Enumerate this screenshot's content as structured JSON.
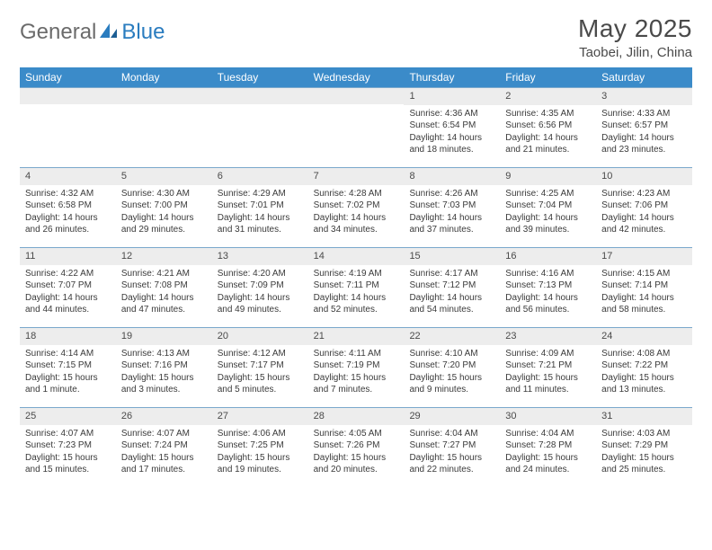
{
  "logo": {
    "text1": "General",
    "text2": "Blue"
  },
  "title": "May 2025",
  "location": "Taobei, Jilin, China",
  "weekdays": [
    "Sunday",
    "Monday",
    "Tuesday",
    "Wednesday",
    "Thursday",
    "Friday",
    "Saturday"
  ],
  "colors": {
    "header_bg": "#3b8bc9",
    "header_text": "#ffffff",
    "daynum_bg": "#ededed",
    "border": "#7aa8cc",
    "logo_blue": "#2a7cbf",
    "logo_gray": "#6b6b6b",
    "text": "#3a3a3a"
  },
  "weeks": [
    [
      {
        "n": "",
        "sunrise": "",
        "sunset": "",
        "daylight": ""
      },
      {
        "n": "",
        "sunrise": "",
        "sunset": "",
        "daylight": ""
      },
      {
        "n": "",
        "sunrise": "",
        "sunset": "",
        "daylight": ""
      },
      {
        "n": "",
        "sunrise": "",
        "sunset": "",
        "daylight": ""
      },
      {
        "n": "1",
        "sunrise": "Sunrise: 4:36 AM",
        "sunset": "Sunset: 6:54 PM",
        "daylight": "Daylight: 14 hours and 18 minutes."
      },
      {
        "n": "2",
        "sunrise": "Sunrise: 4:35 AM",
        "sunset": "Sunset: 6:56 PM",
        "daylight": "Daylight: 14 hours and 21 minutes."
      },
      {
        "n": "3",
        "sunrise": "Sunrise: 4:33 AM",
        "sunset": "Sunset: 6:57 PM",
        "daylight": "Daylight: 14 hours and 23 minutes."
      }
    ],
    [
      {
        "n": "4",
        "sunrise": "Sunrise: 4:32 AM",
        "sunset": "Sunset: 6:58 PM",
        "daylight": "Daylight: 14 hours and 26 minutes."
      },
      {
        "n": "5",
        "sunrise": "Sunrise: 4:30 AM",
        "sunset": "Sunset: 7:00 PM",
        "daylight": "Daylight: 14 hours and 29 minutes."
      },
      {
        "n": "6",
        "sunrise": "Sunrise: 4:29 AM",
        "sunset": "Sunset: 7:01 PM",
        "daylight": "Daylight: 14 hours and 31 minutes."
      },
      {
        "n": "7",
        "sunrise": "Sunrise: 4:28 AM",
        "sunset": "Sunset: 7:02 PM",
        "daylight": "Daylight: 14 hours and 34 minutes."
      },
      {
        "n": "8",
        "sunrise": "Sunrise: 4:26 AM",
        "sunset": "Sunset: 7:03 PM",
        "daylight": "Daylight: 14 hours and 37 minutes."
      },
      {
        "n": "9",
        "sunrise": "Sunrise: 4:25 AM",
        "sunset": "Sunset: 7:04 PM",
        "daylight": "Daylight: 14 hours and 39 minutes."
      },
      {
        "n": "10",
        "sunrise": "Sunrise: 4:23 AM",
        "sunset": "Sunset: 7:06 PM",
        "daylight": "Daylight: 14 hours and 42 minutes."
      }
    ],
    [
      {
        "n": "11",
        "sunrise": "Sunrise: 4:22 AM",
        "sunset": "Sunset: 7:07 PM",
        "daylight": "Daylight: 14 hours and 44 minutes."
      },
      {
        "n": "12",
        "sunrise": "Sunrise: 4:21 AM",
        "sunset": "Sunset: 7:08 PM",
        "daylight": "Daylight: 14 hours and 47 minutes."
      },
      {
        "n": "13",
        "sunrise": "Sunrise: 4:20 AM",
        "sunset": "Sunset: 7:09 PM",
        "daylight": "Daylight: 14 hours and 49 minutes."
      },
      {
        "n": "14",
        "sunrise": "Sunrise: 4:19 AM",
        "sunset": "Sunset: 7:11 PM",
        "daylight": "Daylight: 14 hours and 52 minutes."
      },
      {
        "n": "15",
        "sunrise": "Sunrise: 4:17 AM",
        "sunset": "Sunset: 7:12 PM",
        "daylight": "Daylight: 14 hours and 54 minutes."
      },
      {
        "n": "16",
        "sunrise": "Sunrise: 4:16 AM",
        "sunset": "Sunset: 7:13 PM",
        "daylight": "Daylight: 14 hours and 56 minutes."
      },
      {
        "n": "17",
        "sunrise": "Sunrise: 4:15 AM",
        "sunset": "Sunset: 7:14 PM",
        "daylight": "Daylight: 14 hours and 58 minutes."
      }
    ],
    [
      {
        "n": "18",
        "sunrise": "Sunrise: 4:14 AM",
        "sunset": "Sunset: 7:15 PM",
        "daylight": "Daylight: 15 hours and 1 minute."
      },
      {
        "n": "19",
        "sunrise": "Sunrise: 4:13 AM",
        "sunset": "Sunset: 7:16 PM",
        "daylight": "Daylight: 15 hours and 3 minutes."
      },
      {
        "n": "20",
        "sunrise": "Sunrise: 4:12 AM",
        "sunset": "Sunset: 7:17 PM",
        "daylight": "Daylight: 15 hours and 5 minutes."
      },
      {
        "n": "21",
        "sunrise": "Sunrise: 4:11 AM",
        "sunset": "Sunset: 7:19 PM",
        "daylight": "Daylight: 15 hours and 7 minutes."
      },
      {
        "n": "22",
        "sunrise": "Sunrise: 4:10 AM",
        "sunset": "Sunset: 7:20 PM",
        "daylight": "Daylight: 15 hours and 9 minutes."
      },
      {
        "n": "23",
        "sunrise": "Sunrise: 4:09 AM",
        "sunset": "Sunset: 7:21 PM",
        "daylight": "Daylight: 15 hours and 11 minutes."
      },
      {
        "n": "24",
        "sunrise": "Sunrise: 4:08 AM",
        "sunset": "Sunset: 7:22 PM",
        "daylight": "Daylight: 15 hours and 13 minutes."
      }
    ],
    [
      {
        "n": "25",
        "sunrise": "Sunrise: 4:07 AM",
        "sunset": "Sunset: 7:23 PM",
        "daylight": "Daylight: 15 hours and 15 minutes."
      },
      {
        "n": "26",
        "sunrise": "Sunrise: 4:07 AM",
        "sunset": "Sunset: 7:24 PM",
        "daylight": "Daylight: 15 hours and 17 minutes."
      },
      {
        "n": "27",
        "sunrise": "Sunrise: 4:06 AM",
        "sunset": "Sunset: 7:25 PM",
        "daylight": "Daylight: 15 hours and 19 minutes."
      },
      {
        "n": "28",
        "sunrise": "Sunrise: 4:05 AM",
        "sunset": "Sunset: 7:26 PM",
        "daylight": "Daylight: 15 hours and 20 minutes."
      },
      {
        "n": "29",
        "sunrise": "Sunrise: 4:04 AM",
        "sunset": "Sunset: 7:27 PM",
        "daylight": "Daylight: 15 hours and 22 minutes."
      },
      {
        "n": "30",
        "sunrise": "Sunrise: 4:04 AM",
        "sunset": "Sunset: 7:28 PM",
        "daylight": "Daylight: 15 hours and 24 minutes."
      },
      {
        "n": "31",
        "sunrise": "Sunrise: 4:03 AM",
        "sunset": "Sunset: 7:29 PM",
        "daylight": "Daylight: 15 hours and 25 minutes."
      }
    ]
  ]
}
